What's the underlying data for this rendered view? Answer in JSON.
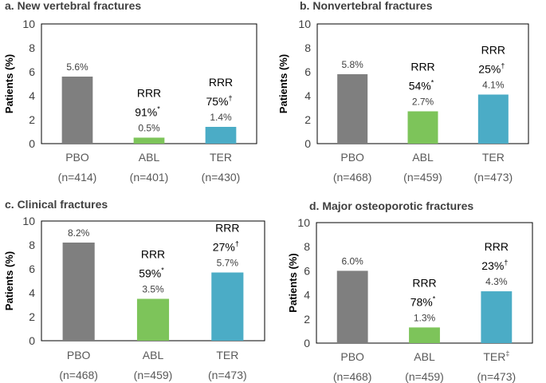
{
  "chart_data": [
    {
      "type": "bar",
      "title": "a. New vertebral fractures",
      "ylabel": "Patients (%)",
      "ylim": [
        0,
        10
      ],
      "yticks": [
        0,
        2,
        4,
        6,
        8,
        10
      ],
      "categories": [
        "PBO",
        "ABL",
        "TER"
      ],
      "category_n": [
        "(n=414)",
        "(n=401)",
        "(n=430)"
      ],
      "category_marks": [
        "",
        "",
        ""
      ],
      "values": [
        5.6,
        0.5,
        1.4
      ],
      "value_labels": [
        "5.6%",
        "0.5%",
        "1.4%"
      ],
      "colors": [
        "#7f7f7f",
        "#7dc45a",
        "#4bacc6"
      ],
      "annotations": [
        null,
        {
          "label": "RRR",
          "value": "91%",
          "mark": "*"
        },
        {
          "label": "RRR",
          "value": "75%",
          "mark": "†"
        }
      ]
    },
    {
      "type": "bar",
      "title": "b. Nonvertebral fractures",
      "ylabel": "Patients (%)",
      "ylim": [
        0,
        10
      ],
      "yticks": [
        0,
        2,
        4,
        6,
        8,
        10
      ],
      "categories": [
        "PBO",
        "ABL",
        "TER"
      ],
      "category_n": [
        "(n=468)",
        "(n=459)",
        "(n=473)"
      ],
      "category_marks": [
        "",
        "",
        ""
      ],
      "values": [
        5.8,
        2.7,
        4.1
      ],
      "value_labels": [
        "5.8%",
        "2.7%",
        "4.1%"
      ],
      "colors": [
        "#7f7f7f",
        "#7dc45a",
        "#4bacc6"
      ],
      "annotations": [
        null,
        {
          "label": "RRR",
          "value": "54%",
          "mark": "*"
        },
        {
          "label": "RRR",
          "value": "25%",
          "mark": "†"
        }
      ]
    },
    {
      "type": "bar",
      "title": "c. Clinical fractures",
      "ylabel": "Patients (%)",
      "ylim": [
        0,
        10
      ],
      "yticks": [
        0,
        2,
        4,
        6,
        8,
        10
      ],
      "categories": [
        "PBO",
        "ABL",
        "TER"
      ],
      "category_n": [
        "(n=468)",
        "(n=459)",
        "(n=473)"
      ],
      "category_marks": [
        "",
        "",
        ""
      ],
      "values": [
        8.2,
        3.5,
        5.7
      ],
      "value_labels": [
        "8.2%",
        "3.5%",
        "5.7%"
      ],
      "colors": [
        "#7f7f7f",
        "#7dc45a",
        "#4bacc6"
      ],
      "annotations": [
        null,
        {
          "label": "RRR",
          "value": "59%",
          "mark": "*"
        },
        {
          "label": "RRR",
          "value": "27%",
          "mark": "†"
        }
      ]
    },
    {
      "type": "bar",
      "title": "d. Major osteoporotic fractures",
      "ylabel": "Patients (%)",
      "ylim": [
        0,
        10
      ],
      "yticks": [
        0,
        2,
        4,
        6,
        8,
        10
      ],
      "categories": [
        "PBO",
        "ABL",
        "TER"
      ],
      "category_n": [
        "(n=468)",
        "(n=459)",
        "(n=473)"
      ],
      "category_marks": [
        "",
        "",
        "‡"
      ],
      "values": [
        6.0,
        1.3,
        4.3
      ],
      "value_labels": [
        "6.0%",
        "1.3%",
        "4.3%"
      ],
      "colors": [
        "#7f7f7f",
        "#7dc45a",
        "#4bacc6"
      ],
      "annotations": [
        null,
        {
          "label": "RRR",
          "value": "78%",
          "mark": "*"
        },
        {
          "label": "RRR",
          "value": "23%",
          "mark": "†"
        }
      ]
    }
  ]
}
